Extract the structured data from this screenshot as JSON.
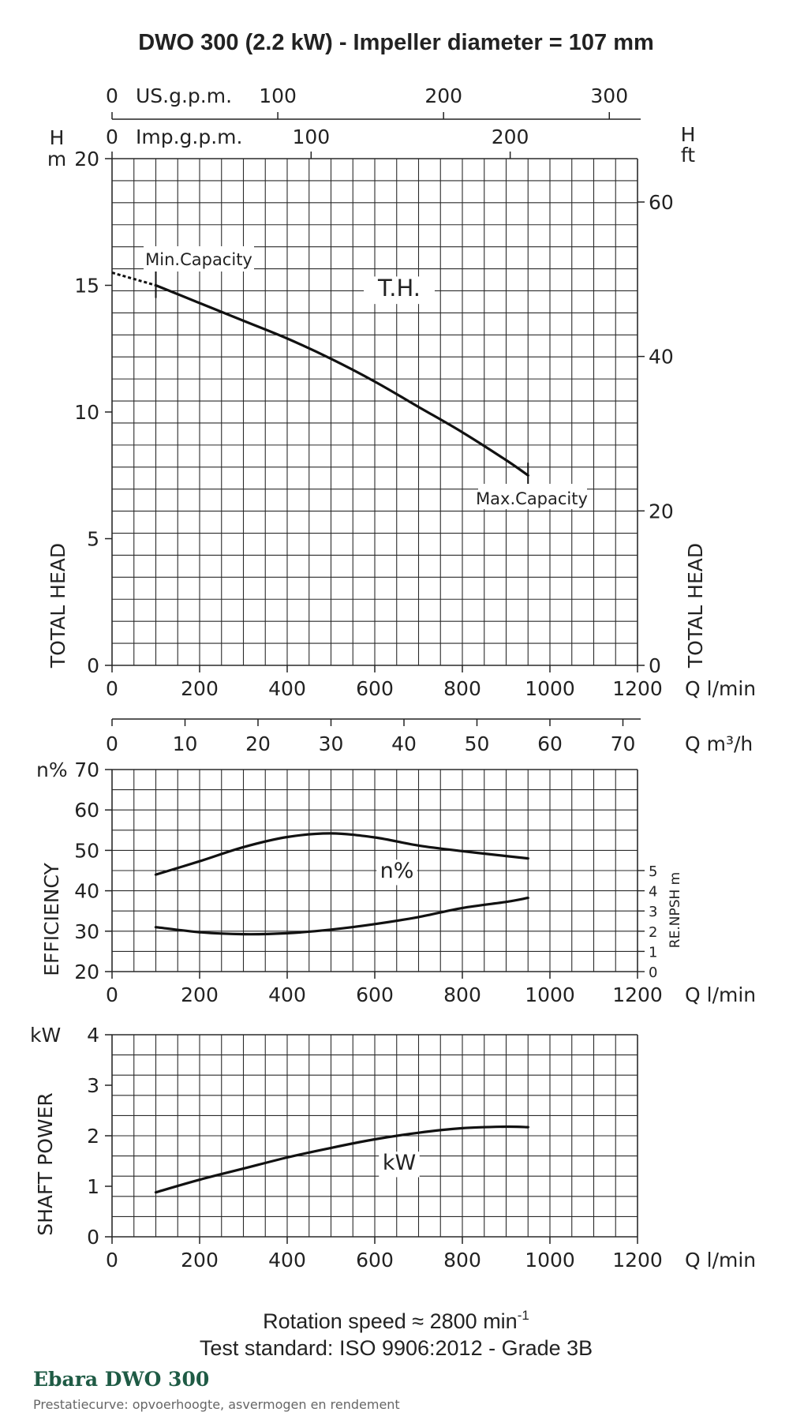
{
  "title": "DWO 300 (2.2 kW) - Impeller diameter = 107 mm",
  "footer": {
    "rotation_prefix": "Rotation speed ≈ 2800 min",
    "rotation_superscript": "-1",
    "test_standard": "Test standard: ISO 9906:2012 - Grade 3B"
  },
  "brand": {
    "name": "Ebara DWO 300",
    "subtitle": "Prestatiecurve: opvoerhoogte, asvermogen en rendement"
  },
  "chart_data": [
    {
      "type": "line",
      "panel": "head",
      "xlabel": "Q l/min",
      "xlim": [
        0,
        1200
      ],
      "x_ticks": [
        0,
        200,
        400,
        600,
        800,
        1000,
        1200
      ],
      "ylabel": "TOTAL HEAD",
      "y_unit": "H m",
      "ylim": [
        0,
        20
      ],
      "y_ticks": [
        0,
        5,
        10,
        15,
        20
      ],
      "ylabel_right": "TOTAL HEAD",
      "y_unit_right": "H ft",
      "y_ticks_right": [
        0,
        20,
        40,
        60
      ],
      "secondary_x_axes": [
        {
          "label": "US.g.p.m.",
          "ticks": [
            0,
            100,
            200,
            300
          ]
        },
        {
          "label": "Imp.g.p.m.",
          "ticks": [
            0,
            100,
            200
          ]
        }
      ],
      "grid": true,
      "series": [
        {
          "name": "T.H.",
          "x": [
            100,
            200,
            300,
            400,
            500,
            600,
            700,
            800,
            900,
            950
          ],
          "y": [
            15.0,
            14.3,
            13.6,
            12.9,
            12.1,
            11.2,
            10.2,
            9.2,
            8.1,
            7.5
          ]
        }
      ],
      "extrapolation": {
        "x": [
          0,
          100
        ],
        "y": [
          15.5,
          15.0
        ]
      },
      "annotations": [
        {
          "text": "Min.Capacity",
          "x": 100
        },
        {
          "text": "Max.Capacity",
          "x": 950
        }
      ]
    },
    {
      "type": "line",
      "panel": "efficiency",
      "xlabel": "Q l/min",
      "xlim": [
        0,
        1200
      ],
      "x_ticks": [
        0,
        200,
        400,
        600,
        800,
        1000,
        1200
      ],
      "secondary_x_axis": {
        "label": "Q m³/h",
        "ticks": [
          0,
          10,
          20,
          30,
          40,
          50,
          60,
          70
        ]
      },
      "ylabel": "EFFICIENCY",
      "y_unit": "n%",
      "ylim": [
        20,
        70
      ],
      "y_ticks": [
        20,
        30,
        40,
        50,
        60,
        70
      ],
      "ylabel_right": "RE.NPSH m",
      "ylim_right": [
        0,
        5
      ],
      "y_ticks_right": [
        0,
        1,
        2,
        3,
        4,
        5
      ],
      "grid": true,
      "series": [
        {
          "name": "n%",
          "x": [
            100,
            200,
            300,
            400,
            500,
            600,
            700,
            800,
            900,
            950
          ],
          "y": [
            44.0,
            47.3,
            50.8,
            53.3,
            54.2,
            53.2,
            51.2,
            49.8,
            48.6,
            48.0
          ]
        },
        {
          "x": [
            100,
            200,
            300,
            400,
            500,
            600,
            700,
            800,
            900,
            950
          ],
          "y": [
            2.2,
            1.95,
            1.85,
            1.9,
            2.08,
            2.35,
            2.7,
            3.15,
            3.45,
            3.65
          ]
        }
      ]
    },
    {
      "type": "line",
      "panel": "shaft_power",
      "xlabel": "Q l/min",
      "xlim": [
        0,
        1200
      ],
      "x_ticks": [
        0,
        200,
        400,
        600,
        800,
        1000,
        1200
      ],
      "ylabel": "SHAFT POWER",
      "y_unit": "kW",
      "ylim": [
        0,
        4
      ],
      "y_ticks": [
        0,
        1,
        2,
        3,
        4
      ],
      "grid": true,
      "series": [
        {
          "name": "kW",
          "x": [
            100,
            200,
            300,
            400,
            500,
            600,
            700,
            800,
            900,
            950
          ],
          "y": [
            0.88,
            1.13,
            1.35,
            1.57,
            1.76,
            1.93,
            2.06,
            2.15,
            2.18,
            2.17
          ]
        }
      ]
    }
  ]
}
